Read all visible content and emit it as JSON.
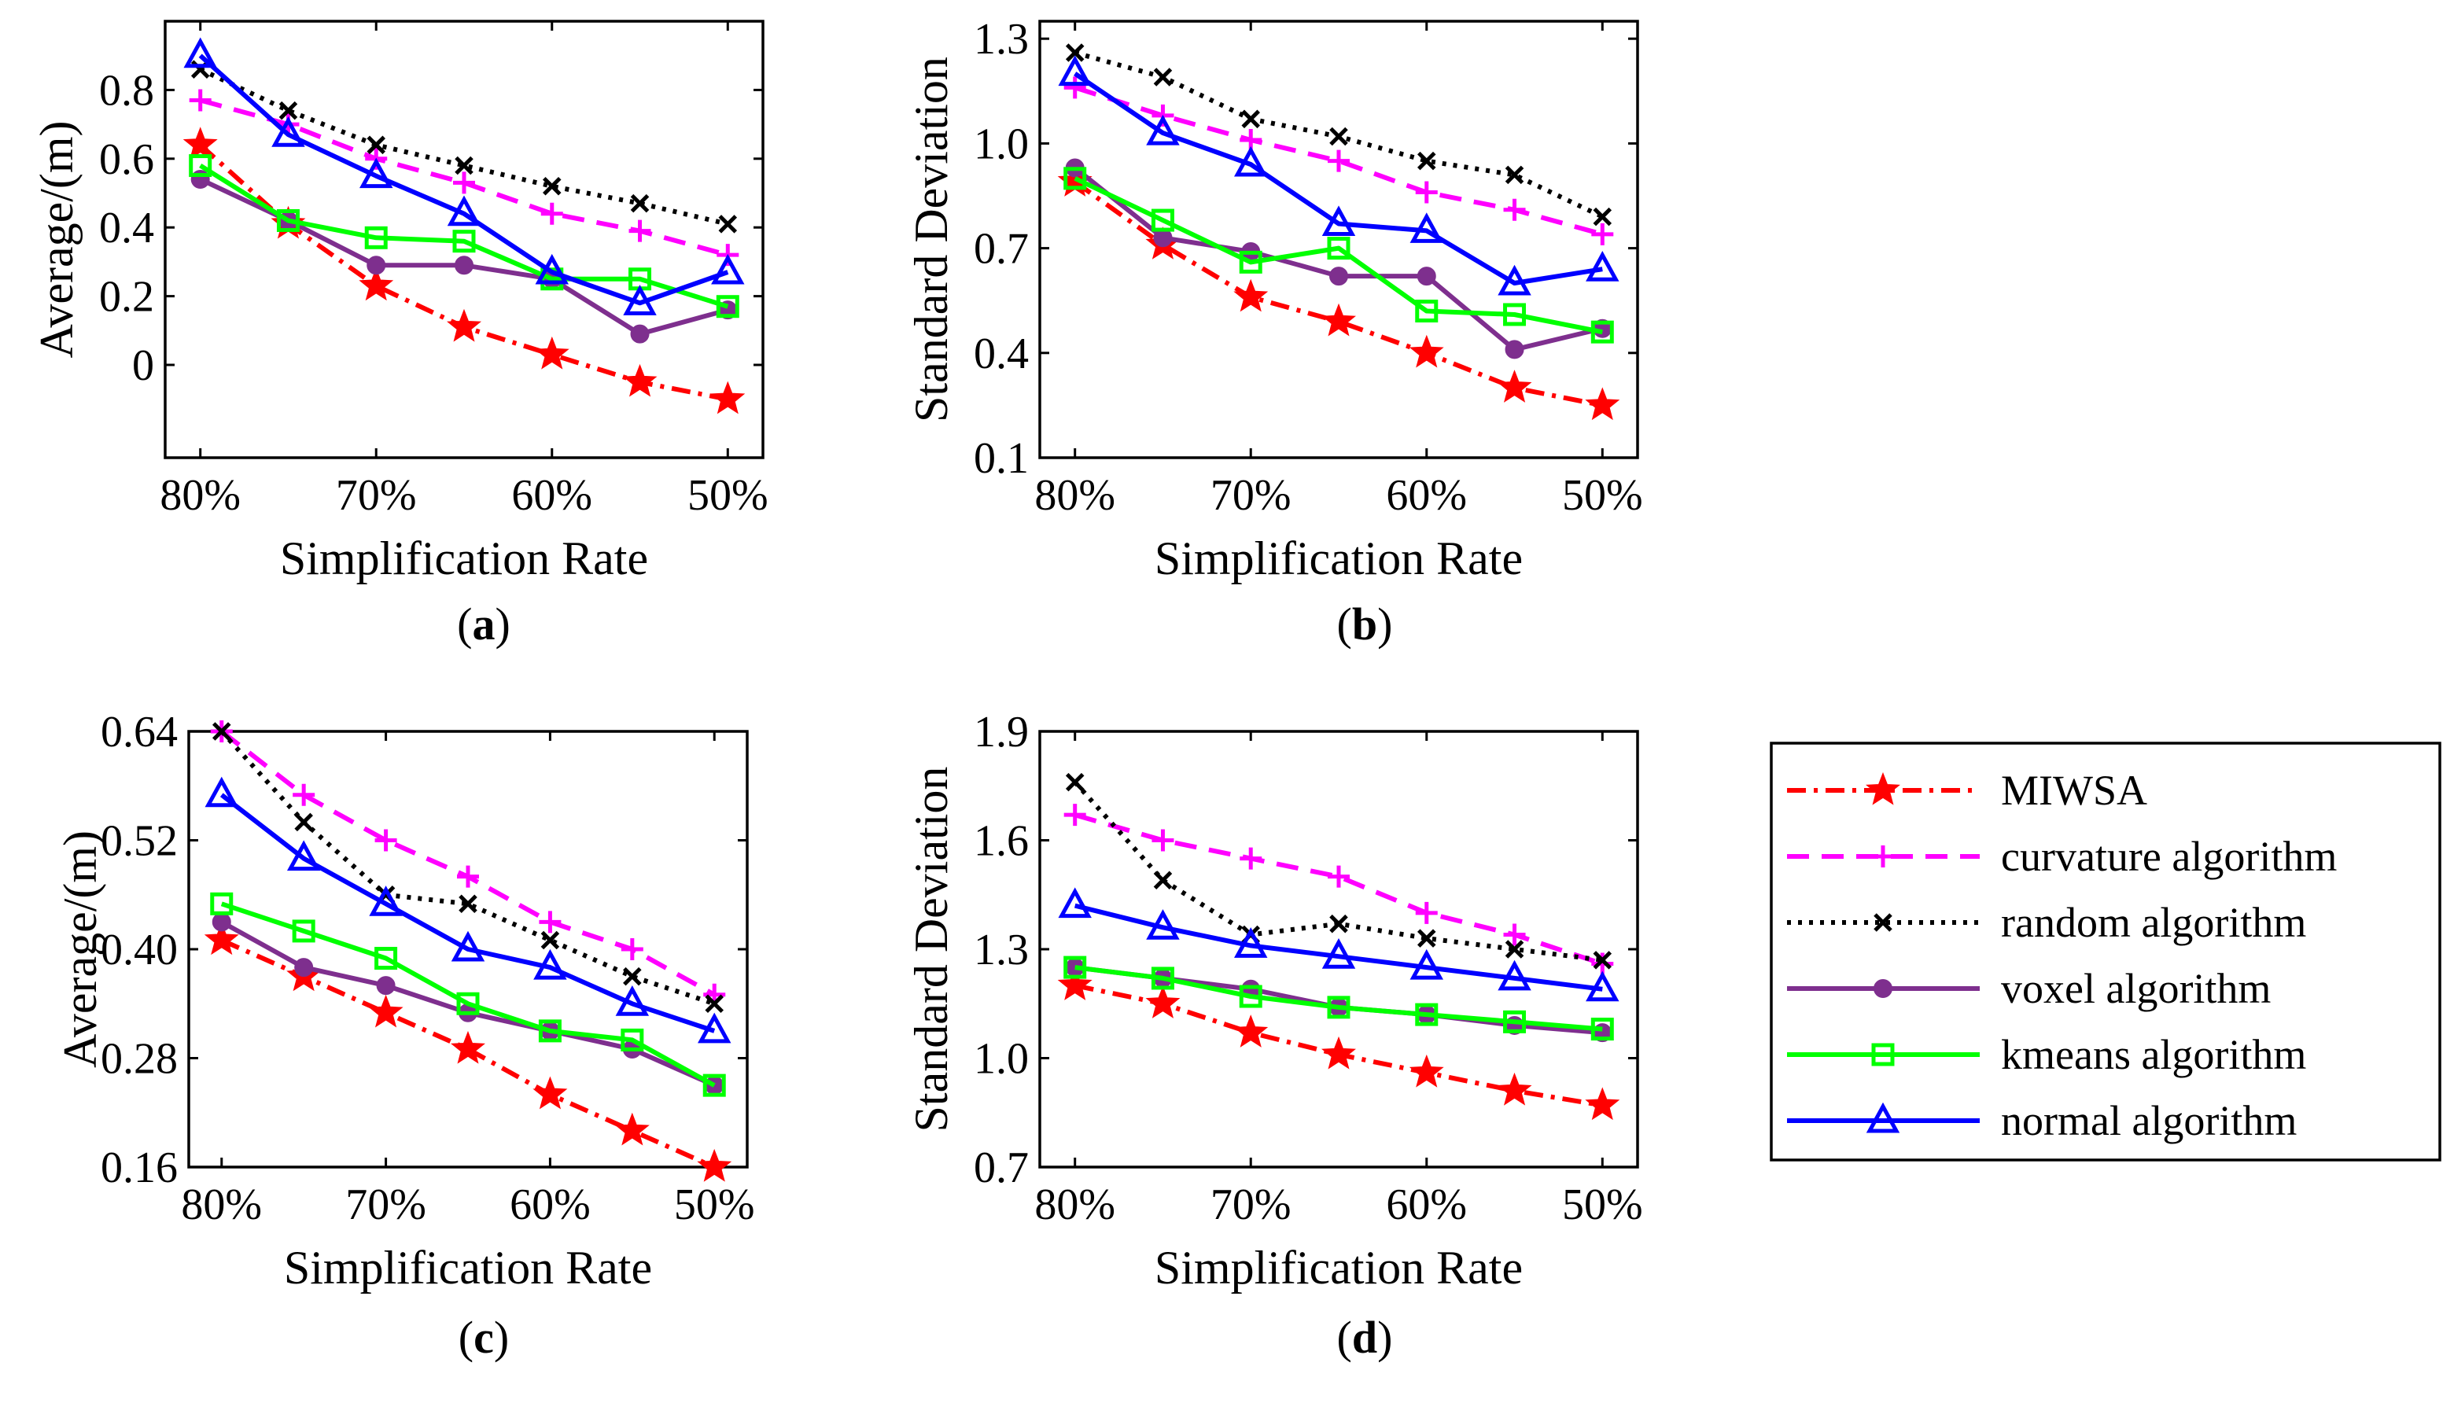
{
  "chart_data": [
    {
      "type": "line",
      "panel": "a",
      "caption": "a",
      "xlabel": "Simplification Rate",
      "ylabel": "Average/(m)",
      "x": [
        80,
        75,
        70,
        65,
        60,
        55,
        50
      ],
      "x_ticks": [
        "80%",
        "70%",
        "60%",
        "50%"
      ],
      "x_tick_values": [
        80,
        70,
        60,
        50
      ],
      "xlim": [
        82,
        48
      ],
      "ylim": [
        -0.27,
        1.0
      ],
      "y_ticks": [
        0,
        0.2,
        0.4,
        0.6,
        0.8
      ],
      "y_tick_labels": [
        "0",
        "0.2",
        "0.4",
        "0.6",
        "0.8"
      ],
      "series": [
        {
          "name": "MIWSA",
          "values": [
            0.64,
            0.41,
            0.23,
            0.11,
            0.03,
            -0.05,
            -0.1
          ]
        },
        {
          "name": "curvature algorithm",
          "values": [
            0.77,
            0.7,
            0.6,
            0.53,
            0.44,
            0.39,
            0.32
          ]
        },
        {
          "name": "random algorithm",
          "values": [
            0.86,
            0.74,
            0.64,
            0.58,
            0.52,
            0.47,
            0.41
          ]
        },
        {
          "name": "voxel algorithm",
          "values": [
            0.54,
            0.42,
            0.29,
            0.29,
            0.25,
            0.09,
            0.16
          ]
        },
        {
          "name": "kmeans algorithm",
          "values": [
            0.58,
            0.42,
            0.37,
            0.36,
            0.25,
            0.25,
            0.17
          ]
        },
        {
          "name": "normal algorithm",
          "values": [
            0.9,
            0.67,
            0.55,
            0.44,
            0.27,
            0.18,
            0.27
          ]
        }
      ]
    },
    {
      "type": "line",
      "panel": "b",
      "caption": "b",
      "xlabel": "Simplification Rate",
      "ylabel": "Standard Deviation",
      "x": [
        80,
        75,
        70,
        65,
        60,
        55,
        50
      ],
      "x_ticks": [
        "80%",
        "70%",
        "60%",
        "50%"
      ],
      "x_tick_values": [
        80,
        70,
        60,
        50
      ],
      "xlim": [
        82,
        48
      ],
      "ylim": [
        0.1,
        1.35
      ],
      "y_ticks": [
        0.1,
        0.4,
        0.7,
        1.0,
        1.3
      ],
      "y_tick_labels": [
        "0.1",
        "0.4",
        "0.7",
        "1.0",
        "1.3"
      ],
      "series": [
        {
          "name": "MIWSA",
          "values": [
            0.89,
            0.71,
            0.56,
            0.49,
            0.4,
            0.3,
            0.25
          ]
        },
        {
          "name": "curvature algorithm",
          "values": [
            1.16,
            1.08,
            1.01,
            0.95,
            0.86,
            0.81,
            0.74
          ]
        },
        {
          "name": "random algorithm",
          "values": [
            1.26,
            1.19,
            1.07,
            1.02,
            0.95,
            0.91,
            0.79
          ]
        },
        {
          "name": "voxel algorithm",
          "values": [
            0.93,
            0.73,
            0.69,
            0.62,
            0.62,
            0.41,
            0.47
          ]
        },
        {
          "name": "kmeans algorithm",
          "values": [
            0.9,
            0.78,
            0.66,
            0.7,
            0.52,
            0.51,
            0.46
          ]
        },
        {
          "name": "normal algorithm",
          "values": [
            1.2,
            1.03,
            0.94,
            0.77,
            0.75,
            0.6,
            0.64
          ]
        }
      ]
    },
    {
      "type": "line",
      "panel": "c",
      "caption": "c",
      "xlabel": "Simplification Rate",
      "ylabel": "Average/(m)",
      "x": [
        80,
        75,
        70,
        65,
        60,
        55,
        50
      ],
      "x_ticks": [
        "80%",
        "70%",
        "60%",
        "50%"
      ],
      "x_tick_values": [
        80,
        70,
        60,
        50
      ],
      "xlim": [
        82,
        48
      ],
      "ylim": [
        0.16,
        0.64
      ],
      "y_ticks": [
        0.16,
        0.28,
        0.4,
        0.52,
        0.64
      ],
      "y_tick_labels": [
        "0.16",
        "0.28",
        "0.40",
        "0.52",
        "0.64"
      ],
      "series": [
        {
          "name": "MIWSA",
          "values": [
            0.41,
            0.37,
            0.33,
            0.29,
            0.24,
            0.2,
            0.16
          ]
        },
        {
          "name": "curvature algorithm",
          "values": [
            0.64,
            0.57,
            0.52,
            0.48,
            0.43,
            0.4,
            0.35
          ]
        },
        {
          "name": "random algorithm",
          "values": [
            0.64,
            0.54,
            0.46,
            0.45,
            0.41,
            0.37,
            0.34
          ]
        },
        {
          "name": "voxel algorithm",
          "values": [
            0.43,
            0.38,
            0.36,
            0.33,
            0.31,
            0.29,
            0.25
          ]
        },
        {
          "name": "kmeans algorithm",
          "values": [
            0.45,
            0.42,
            0.39,
            0.34,
            0.31,
            0.3,
            0.25
          ]
        },
        {
          "name": "normal algorithm",
          "values": [
            0.57,
            0.5,
            0.45,
            0.4,
            0.38,
            0.34,
            0.31
          ]
        }
      ]
    },
    {
      "type": "line",
      "panel": "d",
      "caption": "d",
      "xlabel": "Simplification Rate",
      "ylabel": "Standard Deviation",
      "x": [
        80,
        75,
        70,
        65,
        60,
        55,
        50
      ],
      "x_ticks": [
        "80%",
        "70%",
        "60%",
        "50%"
      ],
      "x_tick_values": [
        80,
        70,
        60,
        50
      ],
      "xlim": [
        82,
        48
      ],
      "ylim": [
        0.7,
        1.9
      ],
      "y_ticks": [
        0.7,
        1.0,
        1.3,
        1.6,
        1.9
      ],
      "y_tick_labels": [
        "0.7",
        "1.0",
        "1.3",
        "1.6",
        "1.9"
      ],
      "series": [
        {
          "name": "MIWSA",
          "values": [
            1.2,
            1.15,
            1.07,
            1.01,
            0.96,
            0.91,
            0.87
          ]
        },
        {
          "name": "curvature algorithm",
          "values": [
            1.67,
            1.6,
            1.55,
            1.5,
            1.4,
            1.34,
            1.26
          ]
        },
        {
          "name": "random algorithm",
          "values": [
            1.76,
            1.49,
            1.34,
            1.37,
            1.33,
            1.3,
            1.27
          ]
        },
        {
          "name": "voxel algorithm",
          "values": [
            1.25,
            1.22,
            1.19,
            1.14,
            1.12,
            1.09,
            1.07
          ]
        },
        {
          "name": "kmeans algorithm",
          "values": [
            1.25,
            1.22,
            1.17,
            1.14,
            1.12,
            1.1,
            1.08
          ]
        },
        {
          "name": "normal algorithm",
          "values": [
            1.42,
            1.36,
            1.31,
            1.28,
            1.25,
            1.22,
            1.19
          ]
        }
      ]
    }
  ],
  "legend": [
    {
      "label": "MIWSA",
      "color": "#ff0000",
      "dash": "dashdot",
      "marker": "star"
    },
    {
      "label": "curvature algorithm",
      "color": "#ff00ff",
      "dash": "dash",
      "marker": "plus"
    },
    {
      "label": "random algorithm",
      "color": "#000000",
      "dash": "dot",
      "marker": "x"
    },
    {
      "label": "voxel algorithm",
      "color": "#7e2f8e",
      "dash": "solid",
      "marker": "circle"
    },
    {
      "label": "kmeans algorithm",
      "color": "#00ff00",
      "dash": "solid",
      "marker": "square"
    },
    {
      "label": "normal algorithm",
      "color": "#0000ff",
      "dash": "solid",
      "marker": "triangle"
    }
  ]
}
